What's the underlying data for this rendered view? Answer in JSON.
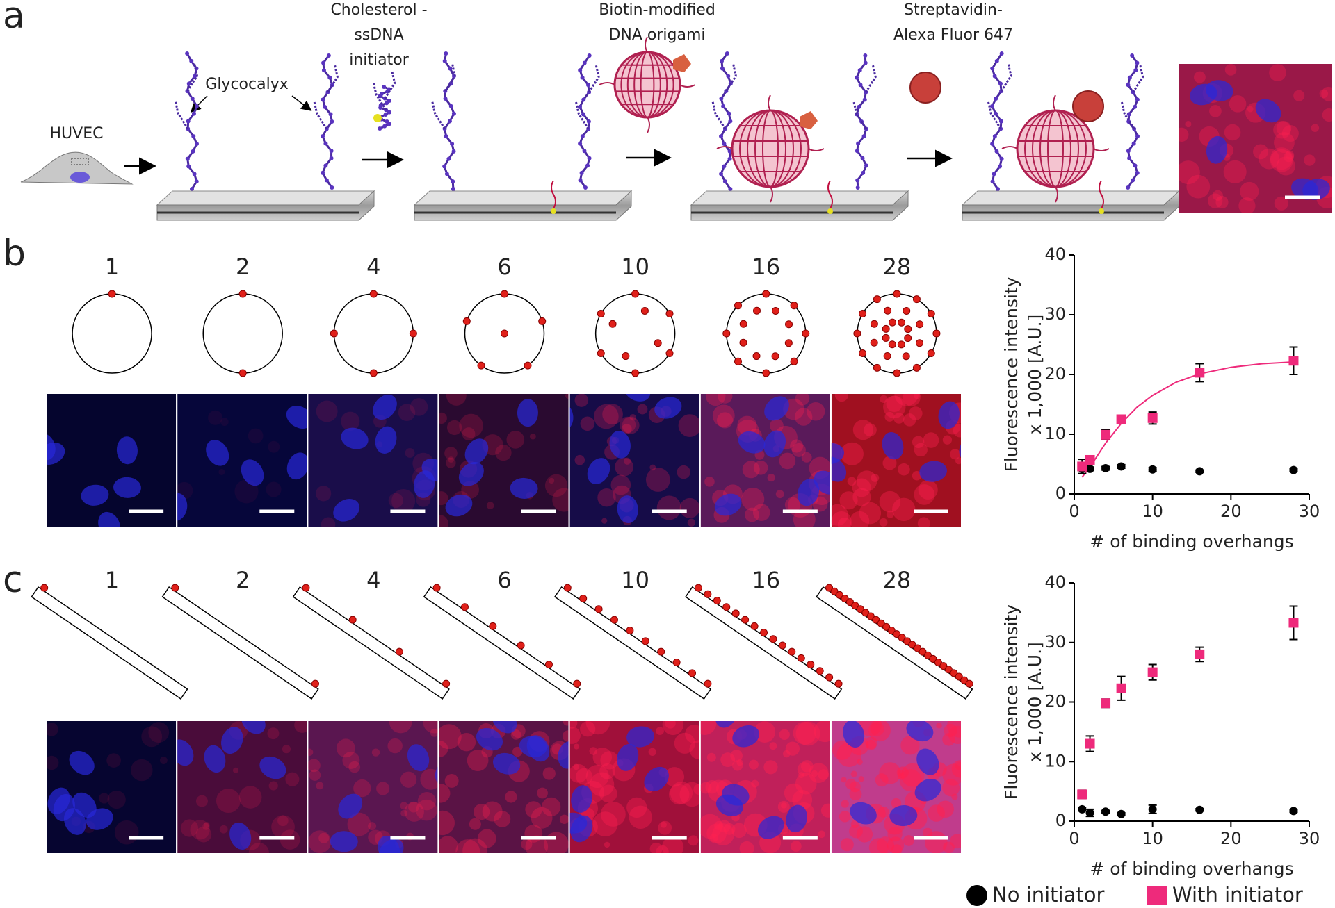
{
  "panel_labels": [
    "a",
    "b",
    "c"
  ],
  "schematic": {
    "cell_label": "HUVEC",
    "glycocalyx_label": "Glycocalyx",
    "steps": [
      [
        "Cholesterol -",
        "ssDNA",
        "initiator"
      ],
      [
        "Biotin-modified",
        "DNA origami"
      ],
      [
        "Streptavidin-",
        "Alexa Fluor 647"
      ]
    ]
  },
  "overhang_counts": [
    1,
    2,
    4,
    6,
    10,
    16,
    28
  ],
  "chart_data": [
    {
      "type": "scatter",
      "ylabel": [
        "Fluorescence intensity",
        "x 1,000 [A.U.]"
      ],
      "xlabel": "# of binding overhangs",
      "x": [
        1,
        2,
        4,
        6,
        10,
        16,
        28
      ],
      "series": [
        {
          "color": "#000000",
          "marker": "circle",
          "values": [
            4.2,
            4.2,
            4.3,
            4.6,
            4.1,
            3.8,
            4.0
          ],
          "errors": [
            0.8,
            0.3,
            0.3,
            0.3,
            0.3,
            0.2,
            0.2
          ]
        },
        {
          "color": "#ee2a7b",
          "marker": "square",
          "values": [
            4.6,
            5.7,
            9.9,
            12.5,
            12.7,
            20.3,
            22.3
          ],
          "errors": [
            1.2,
            0.5,
            0.8,
            0.6,
            1.0,
            1.5,
            2.3
          ]
        }
      ],
      "fit": {
        "color": "#ee2a7b",
        "x": [
          1,
          2,
          4,
          6,
          8,
          10,
          13,
          16,
          20,
          24,
          28
        ],
        "values": [
          2.8,
          4.5,
          8.5,
          11.8,
          14.5,
          16.5,
          18.7,
          20.1,
          21.2,
          21.8,
          22.1
        ]
      },
      "xlim": [
        0,
        30
      ],
      "xticks": [
        0,
        10,
        20,
        30
      ],
      "ylim": [
        0,
        40
      ],
      "yticks": [
        0,
        10,
        20,
        30,
        40
      ]
    },
    {
      "type": "scatter",
      "ylabel": [
        "Fluorescence intensity",
        "x 1,000 [A.U.]"
      ],
      "xlabel": "# of binding overhangs",
      "x": [
        1,
        2,
        4,
        6,
        10,
        16,
        28
      ],
      "series": [
        {
          "name": "No initiator",
          "color": "#000000",
          "marker": "circle",
          "values": [
            2.0,
            1.4,
            1.6,
            1.2,
            2.0,
            1.9,
            1.7
          ],
          "errors": [
            0.3,
            0.6,
            0.2,
            0.2,
            0.7,
            0.2,
            0.2
          ]
        },
        {
          "name": "With initiator",
          "color": "#ee2a7b",
          "marker": "square",
          "values": [
            4.5,
            13.0,
            19.8,
            22.3,
            25.0,
            28.0,
            33.3
          ],
          "errors": [
            0.7,
            1.3,
            0.7,
            2.0,
            1.3,
            1.2,
            2.8
          ]
        }
      ],
      "xlim": [
        0,
        30
      ],
      "xticks": [
        0,
        10,
        20,
        30
      ],
      "ylim": [
        0,
        40
      ],
      "yticks": [
        0,
        10,
        20,
        30,
        40
      ]
    }
  ]
}
